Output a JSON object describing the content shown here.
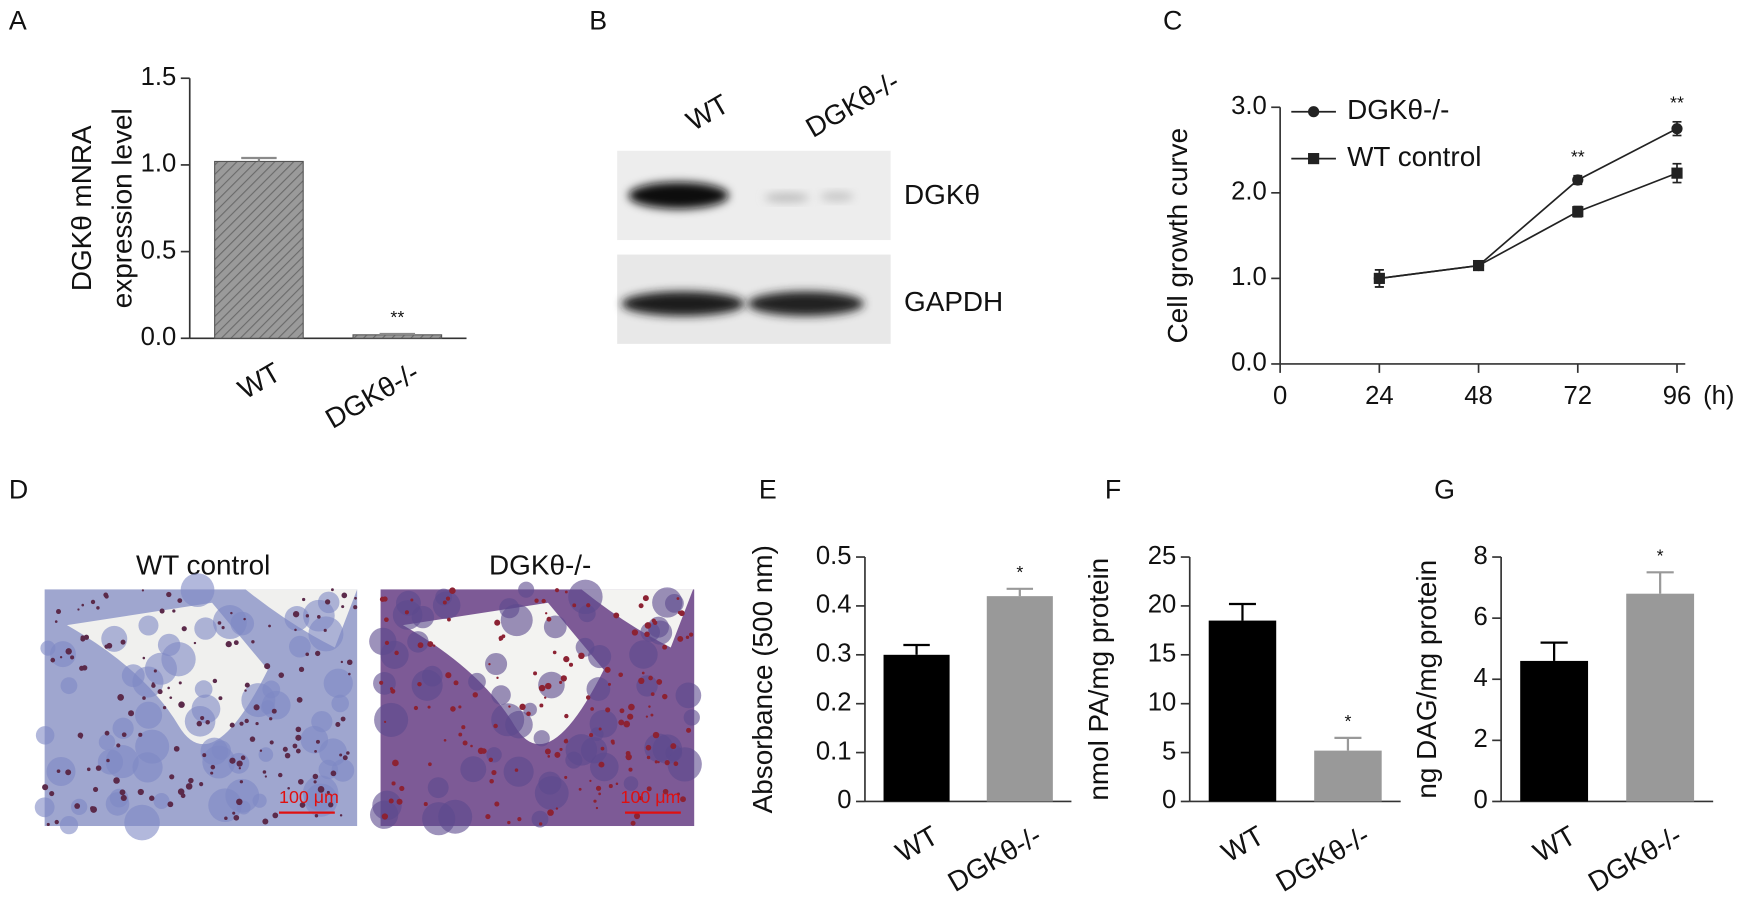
{
  "chart_data": [
    {
      "type": "bar",
      "panel": "A",
      "ylabel": [
        "DGKθ mNRA",
        "expression level"
      ],
      "categories": [
        "WT",
        "DGKθ-/-"
      ],
      "values": [
        1.02,
        0.02
      ],
      "errors": [
        0.02,
        0.005
      ],
      "colors": [
        "#8a8a8a",
        "#8a8a8a"
      ],
      "hatch": true,
      "ylim": [
        0,
        1.5
      ],
      "yticks": [
        {
          "value": 0,
          "label": "0.0"
        },
        0.5,
        {
          "value": 1,
          "label": "1.0"
        },
        1.5
      ],
      "annotations": [
        {
          "text": "**",
          "index": 1
        }
      ]
    },
    {
      "type": "line",
      "panel": "C",
      "ylabel": "Cell growth curve",
      "xlabel": "(h)",
      "x": [
        24,
        48,
        72,
        96
      ],
      "series": [
        {
          "name": "DGKθ-/-",
          "color": "#222222",
          "marker": "circle",
          "values": [
            1.0,
            1.15,
            2.15,
            2.75
          ],
          "errors": [
            0.1,
            0.03,
            0.05,
            0.08
          ]
        },
        {
          "name": "WT control",
          "color": "#222222",
          "marker": "square",
          "values": [
            1.0,
            1.15,
            1.78,
            2.23
          ],
          "errors": [
            0.1,
            0.03,
            0.06,
            0.11
          ]
        }
      ],
      "xlim": [
        0,
        98
      ],
      "xticks": [
        0,
        24,
        48,
        72,
        96
      ],
      "ylim": [
        0,
        3
      ],
      "yticks": [
        {
          "value": 0,
          "label": "0.0"
        },
        {
          "value": 1,
          "label": "1.0"
        },
        {
          "value": 2,
          "label": "2.0"
        },
        {
          "value": 3,
          "label": "3.0"
        }
      ],
      "legend": "upper left",
      "annotations": [
        {
          "text": "**",
          "x": 72
        },
        {
          "text": "**",
          "x": 96
        }
      ]
    },
    {
      "type": "bar",
      "panel": "E",
      "ylabel": "Absorbance (500 nm)",
      "categories": [
        "WT",
        "DGKθ-/-"
      ],
      "values": [
        0.3,
        0.42
      ],
      "errors": [
        0.02,
        0.015
      ],
      "colors": [
        "#000000",
        "#999999"
      ],
      "hatch": false,
      "ylim": [
        0,
        0.5
      ],
      "yticks": [
        0,
        0.1,
        0.2,
        0.3,
        0.4,
        0.5
      ],
      "annotations": [
        {
          "text": "*",
          "index": 1
        }
      ]
    },
    {
      "type": "bar",
      "panel": "F",
      "ylabel": "nmol PA/mg protein",
      "categories": [
        "WT",
        "DGKθ-/-"
      ],
      "values": [
        18.5,
        5.2
      ],
      "errors": [
        1.7,
        1.3
      ],
      "colors": [
        "#000000",
        "#999999"
      ],
      "hatch": false,
      "ylim": [
        0,
        25
      ],
      "yticks": [
        0,
        5,
        10,
        15,
        20,
        25
      ],
      "annotations": [
        {
          "text": "*",
          "index": 1
        }
      ]
    },
    {
      "type": "bar",
      "panel": "G",
      "ylabel": "ng DAG/mg protein",
      "categories": [
        "WT",
        "DGKθ-/-"
      ],
      "values": [
        4.6,
        6.8
      ],
      "errors": [
        0.6,
        0.7
      ],
      "colors": [
        "#000000",
        "#999999"
      ],
      "hatch": false,
      "ylim": [
        0,
        8
      ],
      "yticks": [
        0,
        2,
        4,
        6,
        8
      ],
      "annotations": [
        {
          "text": "*",
          "index": 1
        }
      ]
    }
  ],
  "blot": {
    "panel": "B",
    "lanes": [
      "WT",
      "DGKθ-/-"
    ],
    "bands": [
      "DGKθ",
      "GAPDH"
    ]
  },
  "micrographs": {
    "panel": "D",
    "images": [
      {
        "title": "WT control",
        "scale": "100 μm"
      },
      {
        "title": "DGKθ-/-",
        "scale": "100 μm"
      }
    ]
  }
}
